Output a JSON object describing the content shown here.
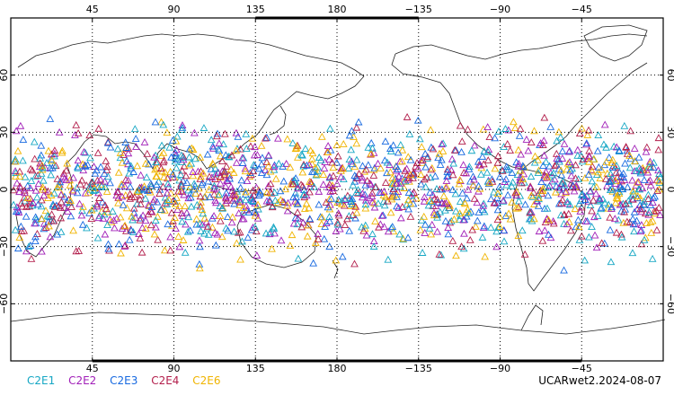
{
  "map": {
    "top_tick_labels": [
      "45",
      "90",
      "135",
      "180",
      "−135",
      "−90",
      "−45"
    ],
    "bottom_tick_labels": [
      "45",
      "90",
      "135",
      "180",
      "−135",
      "−90",
      "−45"
    ],
    "left_tick_labels": [
      "60",
      "30",
      "0",
      "−30",
      "−60"
    ],
    "right_tick_labels": [
      "60",
      "30",
      "0",
      "−30",
      "−60"
    ],
    "longitude_ticks_deg": [
      45,
      90,
      135,
      180,
      225,
      270,
      315
    ],
    "latitude_ticks_deg": [
      60,
      30,
      0,
      -30,
      -60
    ],
    "lon_range": [
      0,
      360
    ],
    "lat_range": [
      -90,
      90
    ],
    "grid": true,
    "marker_shape": "triangle-outline",
    "observation_lat_band": [
      -45,
      45
    ]
  },
  "legend": {
    "items": [
      {
        "label": "C2E1",
        "color": "#16a7c4"
      },
      {
        "label": "C2E2",
        "color": "#a11fb8"
      },
      {
        "label": "C2E3",
        "color": "#1769e0"
      },
      {
        "label": "C2E4",
        "color": "#b31f4c"
      },
      {
        "label": "C2E6",
        "color": "#f0b400"
      }
    ]
  },
  "caption": "UCARwet2.2024-08-07"
}
